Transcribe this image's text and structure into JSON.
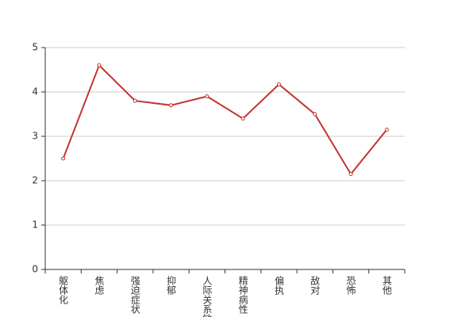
{
  "chart_data": {
    "type": "line",
    "categories": [
      "躯体化",
      "焦虑",
      "强迫症状",
      "抑郁",
      "人际关系敏感",
      "精神病性",
      "偏执",
      "敌对",
      "恐怖",
      "其他"
    ],
    "series": [
      {
        "color": "#c23531",
        "values": [
          2.5,
          4.6,
          3.8,
          3.7,
          3.9,
          3.4,
          4.17,
          3.5,
          2.15,
          3.15
        ]
      }
    ],
    "ylim": [
      0,
      5
    ],
    "yticks": [
      0,
      1,
      2,
      3,
      4,
      5
    ],
    "grid": true
  }
}
